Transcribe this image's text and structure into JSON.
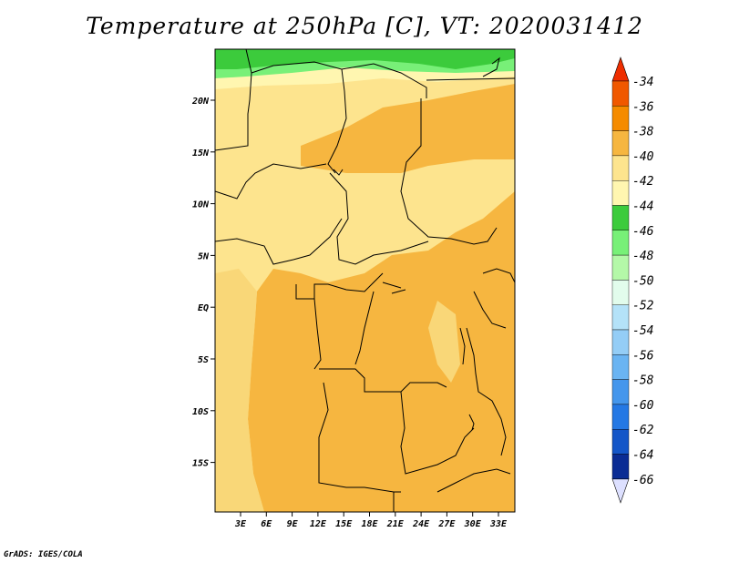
{
  "title": "Temperature at 250hPa [C], VT: 2020031412",
  "footer": "GrADS: IGES/COLA",
  "map": {
    "lat_labels": [
      "20N",
      "15N",
      "10N",
      "5N",
      "EQ",
      "5S",
      "10S",
      "15S"
    ],
    "lon_labels": [
      "3E",
      "6E",
      "9E",
      "12E",
      "15E",
      "18E",
      "21E",
      "24E",
      "27E",
      "30E",
      "33E"
    ],
    "colors": {
      "c_40_38": "#f9d778",
      "c_42_40": "#fde48e",
      "c_38_36": "#f6b640",
      "c_44_42": "#fff6b0",
      "c_46_44": "#3ccb3c",
      "c_48_46": "#78f078"
    }
  },
  "colorbar": {
    "labels": [
      "-34",
      "-36",
      "-38",
      "-40",
      "-42",
      "-44",
      "-46",
      "-48",
      "-50",
      "-52",
      "-54",
      "-56",
      "-58",
      "-60",
      "-62",
      "-64",
      "-66"
    ],
    "colors": [
      "#f05800",
      "#f58b00",
      "#f6b640",
      "#fde48e",
      "#fff6b0",
      "#3ccb3c",
      "#78f078",
      "#b4f8a8",
      "#e2fcec",
      "#b4e2f8",
      "#94cdf6",
      "#6ab4f2",
      "#4496ec",
      "#2478e4",
      "#1456c8",
      "#0a2c94",
      "#04086c"
    ],
    "top_color": "#ee2e00",
    "bottom_color": "#dde0ff"
  }
}
